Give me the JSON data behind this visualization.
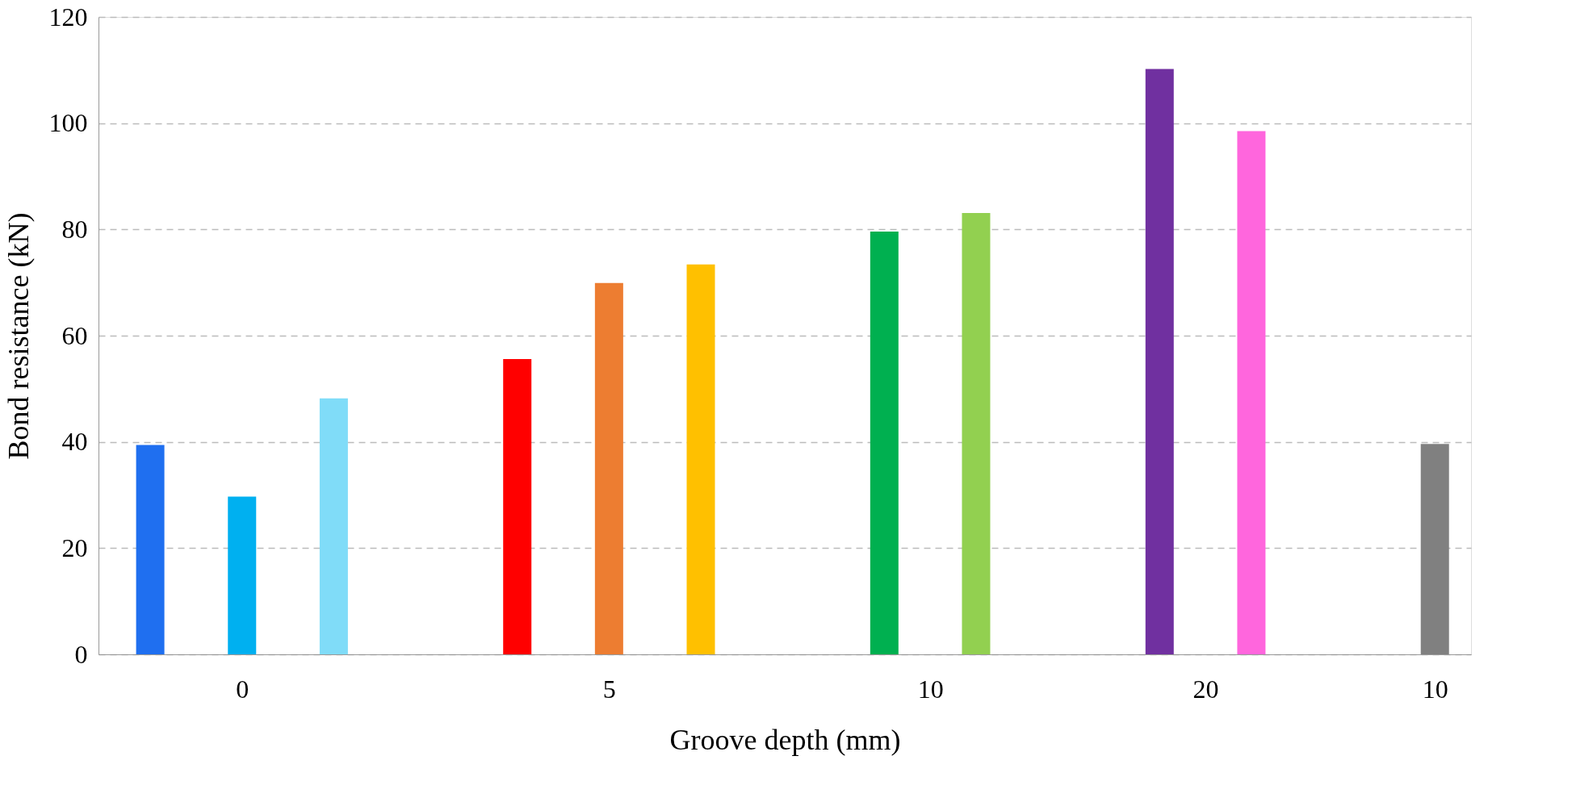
{
  "chart_data": {
    "type": "bar",
    "xlabel": "Groove depth (mm)",
    "ylabel": "Bond resistance (kN)",
    "categories": [
      "0",
      "5",
      "10",
      "20",
      "10"
    ],
    "series": [
      {
        "values": [
          39.4,
          55.6,
          79.6,
          110.2,
          39.6
        ],
        "colors": [
          "#1f6ff0",
          "#ff0000",
          "#00b050",
          "#7030a0",
          "#808080"
        ]
      },
      {
        "values": [
          29.7,
          69.9,
          83.1,
          98.5,
          null
        ],
        "colors": [
          "#00b0f0",
          "#ed7d31",
          "#92d050",
          "#ff66dd",
          null
        ]
      },
      {
        "values": [
          48.2,
          73.4,
          null,
          null,
          null
        ],
        "colors": [
          "#80dcf8",
          "#ffc000",
          null,
          null,
          null
        ]
      }
    ],
    "ylim": [
      0,
      120
    ],
    "yticks": [
      0,
      20,
      40,
      60,
      80,
      100,
      120
    ],
    "grid": "y",
    "legend": false
  }
}
